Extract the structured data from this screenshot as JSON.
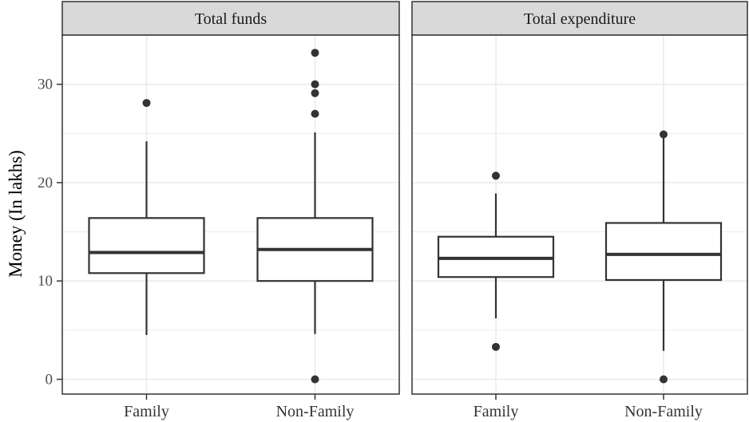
{
  "chart_data": {
    "type": "boxplot",
    "ylabel": "Money (In lakhs)",
    "xlabel": "",
    "categories": [
      "Family",
      "Non-Family"
    ],
    "ylim": [
      -1.5,
      35
    ],
    "yticks": [
      0,
      10,
      20,
      30
    ],
    "grid": true,
    "panels": [
      {
        "title": "Total funds",
        "boxes": [
          {
            "category": "Family",
            "whisker_low": 4.5,
            "q1": 10.8,
            "median": 12.9,
            "q3": 16.4,
            "whisker_high": 24.2,
            "outliers": [
              28.1
            ]
          },
          {
            "category": "Non-Family",
            "whisker_low": 4.6,
            "q1": 10.0,
            "median": 13.2,
            "q3": 16.4,
            "whisker_high": 25.1,
            "outliers": [
              0,
              27.0,
              29.1,
              30.0,
              33.2
            ]
          }
        ]
      },
      {
        "title": "Total expenditure",
        "boxes": [
          {
            "category": "Family",
            "whisker_low": 6.2,
            "q1": 10.4,
            "median": 12.3,
            "q3": 14.5,
            "whisker_high": 18.9,
            "outliers": [
              3.3,
              20.7
            ]
          },
          {
            "category": "Non-Family",
            "whisker_low": 2.9,
            "q1": 10.1,
            "median": 12.7,
            "q3": 15.9,
            "whisker_high": 24.6,
            "outliers": [
              0,
              24.9
            ]
          }
        ]
      }
    ]
  },
  "colors": {
    "panel_border": "#333333",
    "strip_fill": "#d9d9d9",
    "grid": "#ebebeb",
    "box_line": "#333333",
    "outlier": "#333333"
  }
}
